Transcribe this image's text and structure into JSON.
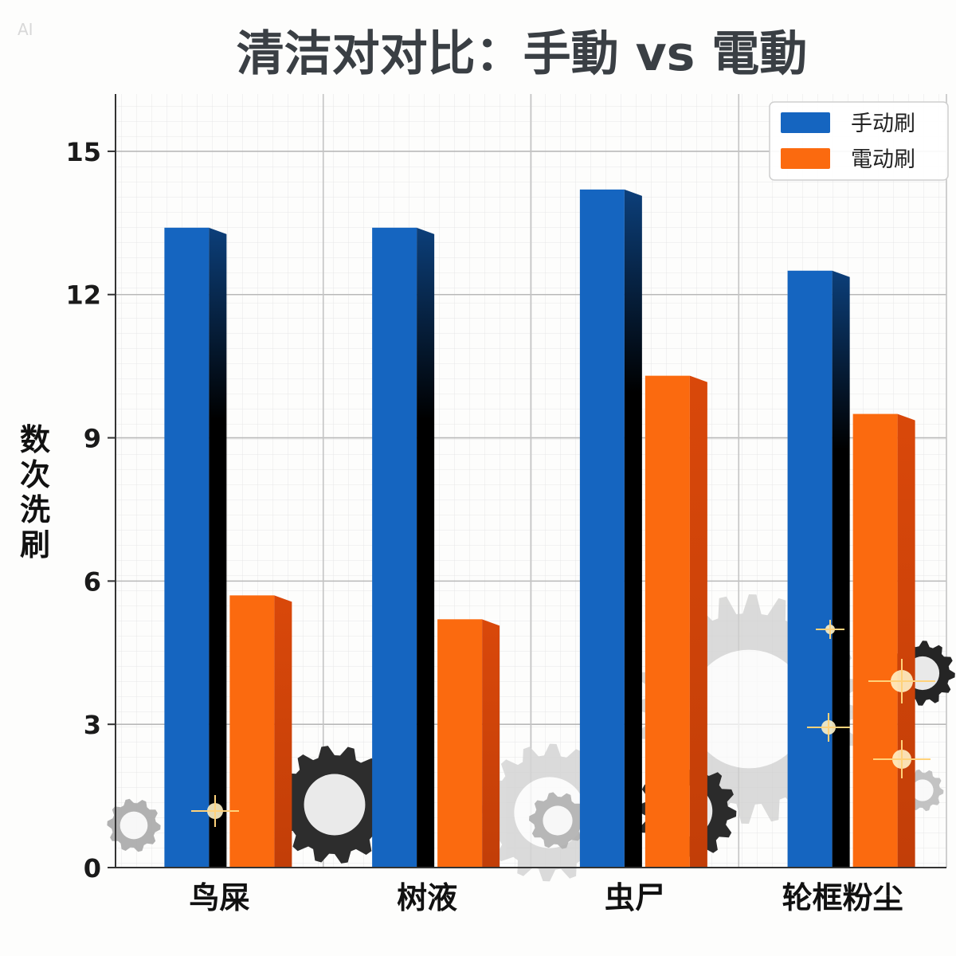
{
  "watermark": "AI",
  "chart_data": {
    "type": "bar",
    "title": "清洁对对比：手動 vs 電動",
    "xlabel": "",
    "ylabel": "数次洗刷",
    "ylim": [
      0,
      16.2
    ],
    "yticks": [
      0,
      3,
      6,
      9,
      12,
      15
    ],
    "grid": true,
    "legend_position": "top-right",
    "categories": [
      "鸟屎",
      "树液",
      "虫尸",
      "轮框粉尘"
    ],
    "series": [
      {
        "name": "手动刷",
        "color": "#1565c0",
        "values": [
          13.4,
          13.4,
          14.2,
          12.5
        ]
      },
      {
        "name": "電动刷",
        "color": "#fb6a0f",
        "values": [
          5.7,
          5.2,
          10.3,
          9.5
        ]
      }
    ]
  }
}
